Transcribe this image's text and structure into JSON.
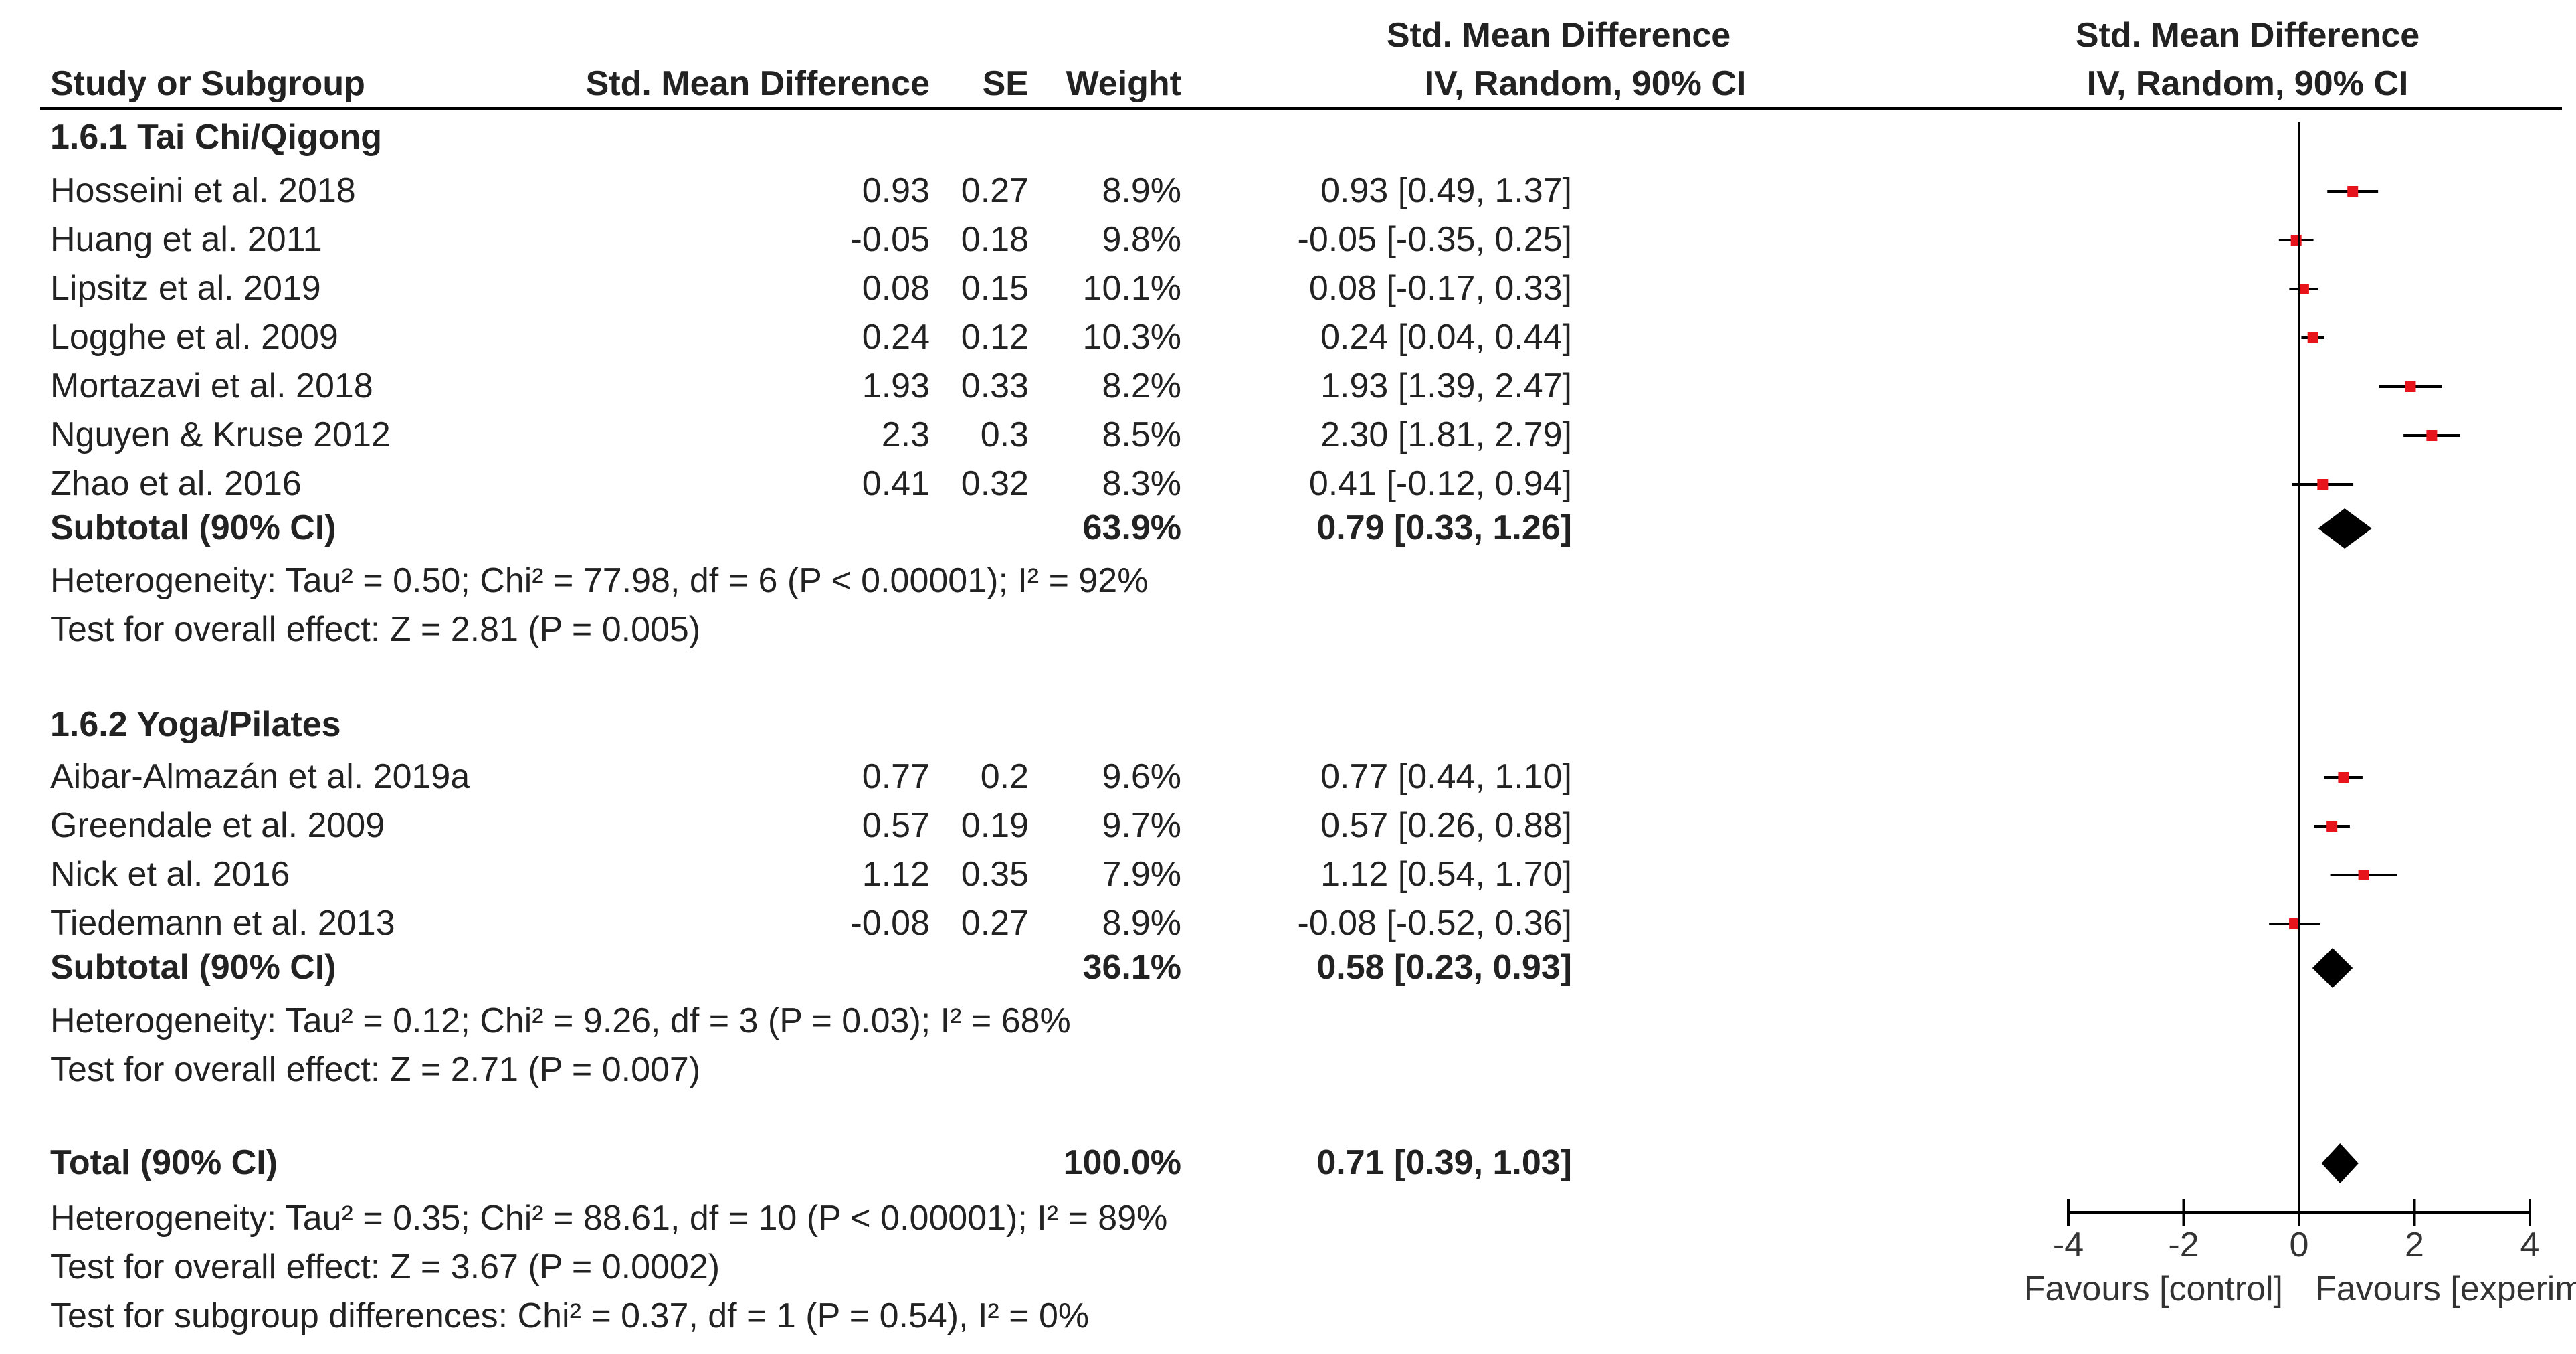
{
  "chart_data": {
    "type": "forest",
    "headers": {
      "study": "Study or Subgroup",
      "smd": "Std. Mean Difference",
      "se": "SE",
      "weight": "Weight",
      "ci_top": "Std. Mean Difference",
      "ci_bottom": "IV, Random, 90% CI",
      "plot_top": "Std. Mean Difference",
      "plot_bottom": "IV, Random, 90% CI"
    },
    "groups": [
      {
        "title": "1.6.1 Tai Chi/Qigong",
        "studies": [
          {
            "name": "Hosseini et al. 2018",
            "smd": "0.93",
            "se": "0.27",
            "weight": "8.9%",
            "ci": "0.93 [0.49, 1.37]",
            "est": 0.93,
            "lo": 0.49,
            "hi": 1.37
          },
          {
            "name": "Huang et al. 2011",
            "smd": "-0.05",
            "se": "0.18",
            "weight": "9.8%",
            "ci": "-0.05 [-0.35, 0.25]",
            "est": -0.05,
            "lo": -0.35,
            "hi": 0.25
          },
          {
            "name": "Lipsitz et al. 2019",
            "smd": "0.08",
            "se": "0.15",
            "weight": "10.1%",
            "ci": "0.08 [-0.17, 0.33]",
            "est": 0.08,
            "lo": -0.17,
            "hi": 0.33
          },
          {
            "name": "Logghe et al. 2009",
            "smd": "0.24",
            "se": "0.12",
            "weight": "10.3%",
            "ci": "0.24 [0.04, 0.44]",
            "est": 0.24,
            "lo": 0.04,
            "hi": 0.44
          },
          {
            "name": "Mortazavi et al. 2018",
            "smd": "1.93",
            "se": "0.33",
            "weight": "8.2%",
            "ci": "1.93 [1.39, 2.47]",
            "est": 1.93,
            "lo": 1.39,
            "hi": 2.47
          },
          {
            "name": "Nguyen & Kruse 2012",
            "smd": "2.3",
            "se": "0.3",
            "weight": "8.5%",
            "ci": "2.30 [1.81, 2.79]",
            "est": 2.3,
            "lo": 1.81,
            "hi": 2.79
          },
          {
            "name": "Zhao et al. 2016",
            "smd": "0.41",
            "se": "0.32",
            "weight": "8.3%",
            "ci": "0.41 [-0.12, 0.94]",
            "est": 0.41,
            "lo": -0.12,
            "hi": 0.94
          }
        ],
        "subtotal": {
          "label": "Subtotal (90% CI)",
          "weight": "63.9%",
          "ci": "0.79 [0.33, 1.26]",
          "est": 0.79,
          "lo": 0.33,
          "hi": 1.26
        },
        "heterogeneity": "Heterogeneity: Tau² = 0.50; Chi² = 77.98, df = 6 (P < 0.00001); I² = 92%",
        "overall": "Test for overall effect: Z = 2.81 (P = 0.005)"
      },
      {
        "title": "1.6.2 Yoga/Pilates",
        "studies": [
          {
            "name": "Aibar-Almazán  et al. 2019a",
            "smd": "0.77",
            "se": "0.2",
            "weight": "9.6%",
            "ci": "0.77 [0.44, 1.10]",
            "est": 0.77,
            "lo": 0.44,
            "hi": 1.1
          },
          {
            "name": "Greendale et al. 2009",
            "smd": "0.57",
            "se": "0.19",
            "weight": "9.7%",
            "ci": "0.57 [0.26, 0.88]",
            "est": 0.57,
            "lo": 0.26,
            "hi": 0.88
          },
          {
            "name": "Nick et al. 2016",
            "smd": "1.12",
            "se": "0.35",
            "weight": "7.9%",
            "ci": "1.12 [0.54, 1.70]",
            "est": 1.12,
            "lo": 0.54,
            "hi": 1.7
          },
          {
            "name": "Tiedemann et al. 2013",
            "smd": "-0.08",
            "se": "0.27",
            "weight": "8.9%",
            "ci": "-0.08 [-0.52, 0.36]",
            "est": -0.08,
            "lo": -0.52,
            "hi": 0.36
          }
        ],
        "subtotal": {
          "label": "Subtotal (90% CI)",
          "weight": "36.1%",
          "ci": "0.58 [0.23, 0.93]",
          "est": 0.58,
          "lo": 0.23,
          "hi": 0.93
        },
        "heterogeneity": "Heterogeneity: Tau² = 0.12; Chi² = 9.26, df = 3 (P = 0.03); I² = 68%",
        "overall": "Test for overall effect: Z = 2.71 (P = 0.007)"
      }
    ],
    "total": {
      "label": "Total (90% CI)",
      "weight": "100.0%",
      "ci": "0.71 [0.39, 1.03]",
      "est": 0.71,
      "lo": 0.39,
      "hi": 1.03
    },
    "total_heterogeneity": "Heterogeneity: Tau² = 0.35; Chi² = 88.61, df = 10 (P < 0.00001); I² = 89%",
    "total_overall": "Test for overall effect: Z = 3.67 (P = 0.0002)",
    "subgroup_test": "Test for subgroup differences: Chi² = 0.37, df = 1 (P = 0.54), I² = 0%",
    "axis": {
      "range": [
        -4,
        4
      ],
      "ticks": [
        -4,
        -2,
        0,
        2,
        4
      ],
      "tick_labels": [
        "-4",
        "-2",
        "0",
        "2",
        "4"
      ],
      "left_label": "Favours [control]",
      "right_label": "Favours [experimental]"
    },
    "colors": {
      "marker": "#e8141b",
      "diamond": "#000000",
      "line": "#000000",
      "text": "#222222"
    }
  }
}
